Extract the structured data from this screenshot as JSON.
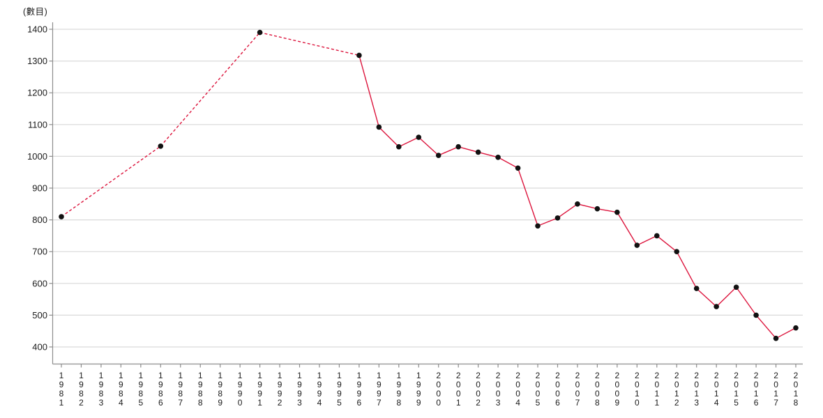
{
  "page": {
    "background": "#ffffff"
  },
  "chart_data": {
    "type": "line",
    "title": "",
    "unit_label": "(數目)",
    "xlabel": "",
    "ylabel": "(數目)",
    "x_categories": [
      "1981",
      "1982",
      "1983",
      "1984",
      "1985",
      "1986",
      "1987",
      "1988",
      "1989",
      "1990",
      "1991",
      "1992",
      "1993",
      "1994",
      "1995",
      "1996",
      "1997",
      "1998",
      "1999",
      "2000",
      "2001",
      "2002",
      "2003",
      "2004",
      "2005",
      "2006",
      "2007",
      "2008",
      "2009",
      "2010",
      "2011",
      "2012",
      "2013",
      "2014",
      "2015",
      "2016",
      "2017",
      "2018"
    ],
    "y_ticks": [
      400,
      500,
      600,
      700,
      800,
      900,
      1000,
      1100,
      1200,
      1300,
      1400
    ],
    "ylim": [
      400,
      1400
    ],
    "grid": "horizontal-only",
    "legend": "none",
    "series": [
      {
        "name": "count",
        "marker": "filled-circle",
        "note": "segments up to 1996 are dashed (interpolated), solid afterwards",
        "points": [
          {
            "year": "1981",
            "value": 810,
            "to_next": "dashed"
          },
          {
            "year": "1986",
            "value": 1032,
            "to_next": "dashed"
          },
          {
            "year": "1991",
            "value": 1390,
            "to_next": "dashed"
          },
          {
            "year": "1996",
            "value": 1318,
            "to_next": "solid"
          },
          {
            "year": "1997",
            "value": 1092,
            "to_next": "solid"
          },
          {
            "year": "1998",
            "value": 1030,
            "to_next": "solid"
          },
          {
            "year": "1999",
            "value": 1060,
            "to_next": "solid"
          },
          {
            "year": "2000",
            "value": 1003,
            "to_next": "solid"
          },
          {
            "year": "2001",
            "value": 1030,
            "to_next": "solid"
          },
          {
            "year": "2002",
            "value": 1013,
            "to_next": "solid"
          },
          {
            "year": "2003",
            "value": 997,
            "to_next": "solid"
          },
          {
            "year": "2004",
            "value": 963,
            "to_next": "solid"
          },
          {
            "year": "2005",
            "value": 781,
            "to_next": "solid"
          },
          {
            "year": "2006",
            "value": 806,
            "to_next": "solid"
          },
          {
            "year": "2007",
            "value": 850,
            "to_next": "solid"
          },
          {
            "year": "2008",
            "value": 835,
            "to_next": "solid"
          },
          {
            "year": "2009",
            "value": 824,
            "to_next": "solid"
          },
          {
            "year": "2010",
            "value": 720,
            "to_next": "solid"
          },
          {
            "year": "2011",
            "value": 750,
            "to_next": "solid"
          },
          {
            "year": "2012",
            "value": 700,
            "to_next": "solid"
          },
          {
            "year": "2013",
            "value": 584,
            "to_next": "solid"
          },
          {
            "year": "2014",
            "value": 527,
            "to_next": "solid"
          },
          {
            "year": "2015",
            "value": 588,
            "to_next": "solid"
          },
          {
            "year": "2016",
            "value": 500,
            "to_next": "solid"
          },
          {
            "year": "2017",
            "value": 427,
            "to_next": "solid"
          },
          {
            "year": "2018",
            "value": 460,
            "to_next": null
          }
        ]
      }
    ],
    "colors": {
      "line": "#dc143c",
      "marker": "#111111",
      "grid": "#d9d9d9",
      "axis": "#8c8c8c",
      "tick_text": "#1a1a1a",
      "background": "#ffffff"
    }
  }
}
